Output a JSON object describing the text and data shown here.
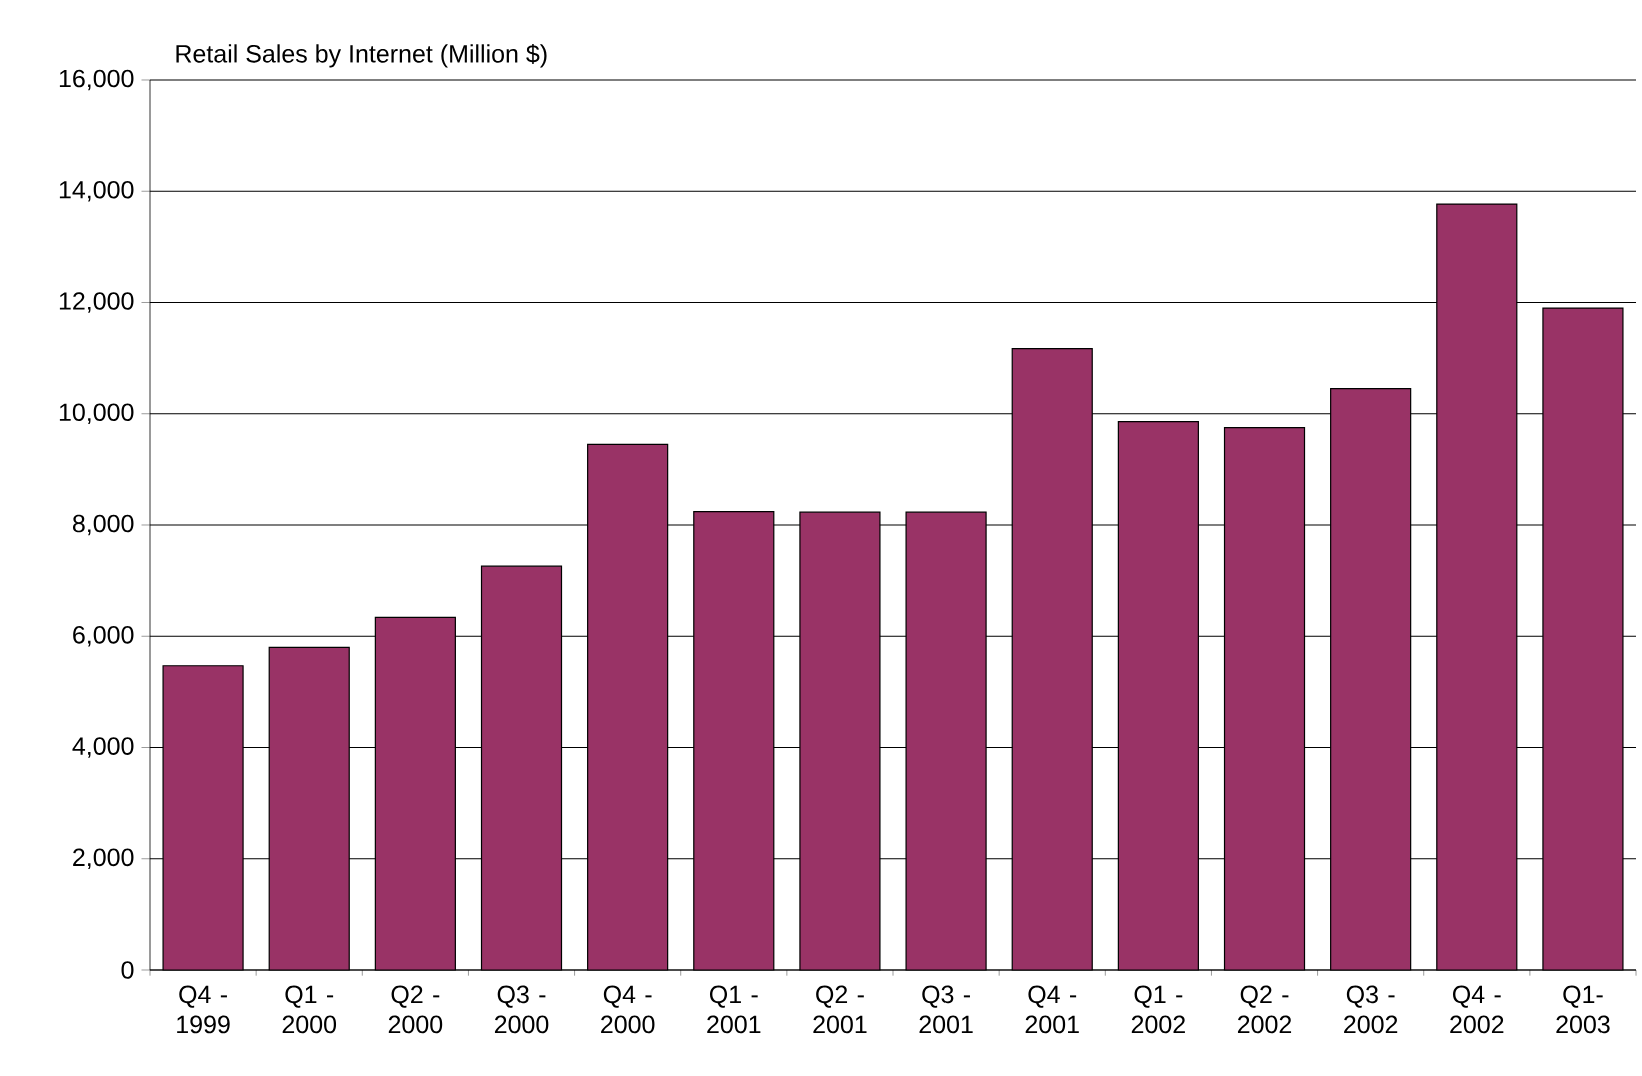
{
  "chart_data": {
    "type": "bar",
    "title": "Retail Sales by Internet (Million $)",
    "categories": [
      "Q4 - 1999",
      "Q1 - 2000",
      "Q2 - 2000",
      "Q3 - 2000",
      "Q4 - 2000",
      "Q1 - 2001",
      "Q2 - 2001",
      "Q3 - 2001",
      "Q4 - 2001",
      "Q1 - 2002",
      "Q2 - 2002",
      "Q3 - 2002",
      "Q4 - 2002",
      "Q1- 2003"
    ],
    "values": [
      5470,
      5800,
      6340,
      7260,
      9450,
      8240,
      8230,
      8230,
      11170,
      9860,
      9750,
      10450,
      13770,
      11900
    ],
    "color": "#993366",
    "ylim": [
      0,
      16000
    ],
    "yticks": [
      {
        "value": 0,
        "label": "0"
      },
      {
        "value": 2000,
        "label": "2,000"
      },
      {
        "value": 4000,
        "label": "4,000"
      },
      {
        "value": 6000,
        "label": "6,000"
      },
      {
        "value": 8000,
        "label": "8,000"
      },
      {
        "value": 10000,
        "label": "10,000"
      },
      {
        "value": 12000,
        "label": "12,000"
      },
      {
        "value": 14000,
        "label": "14,000"
      },
      {
        "value": 16000,
        "label": "16,000"
      }
    ],
    "grid": "y"
  }
}
